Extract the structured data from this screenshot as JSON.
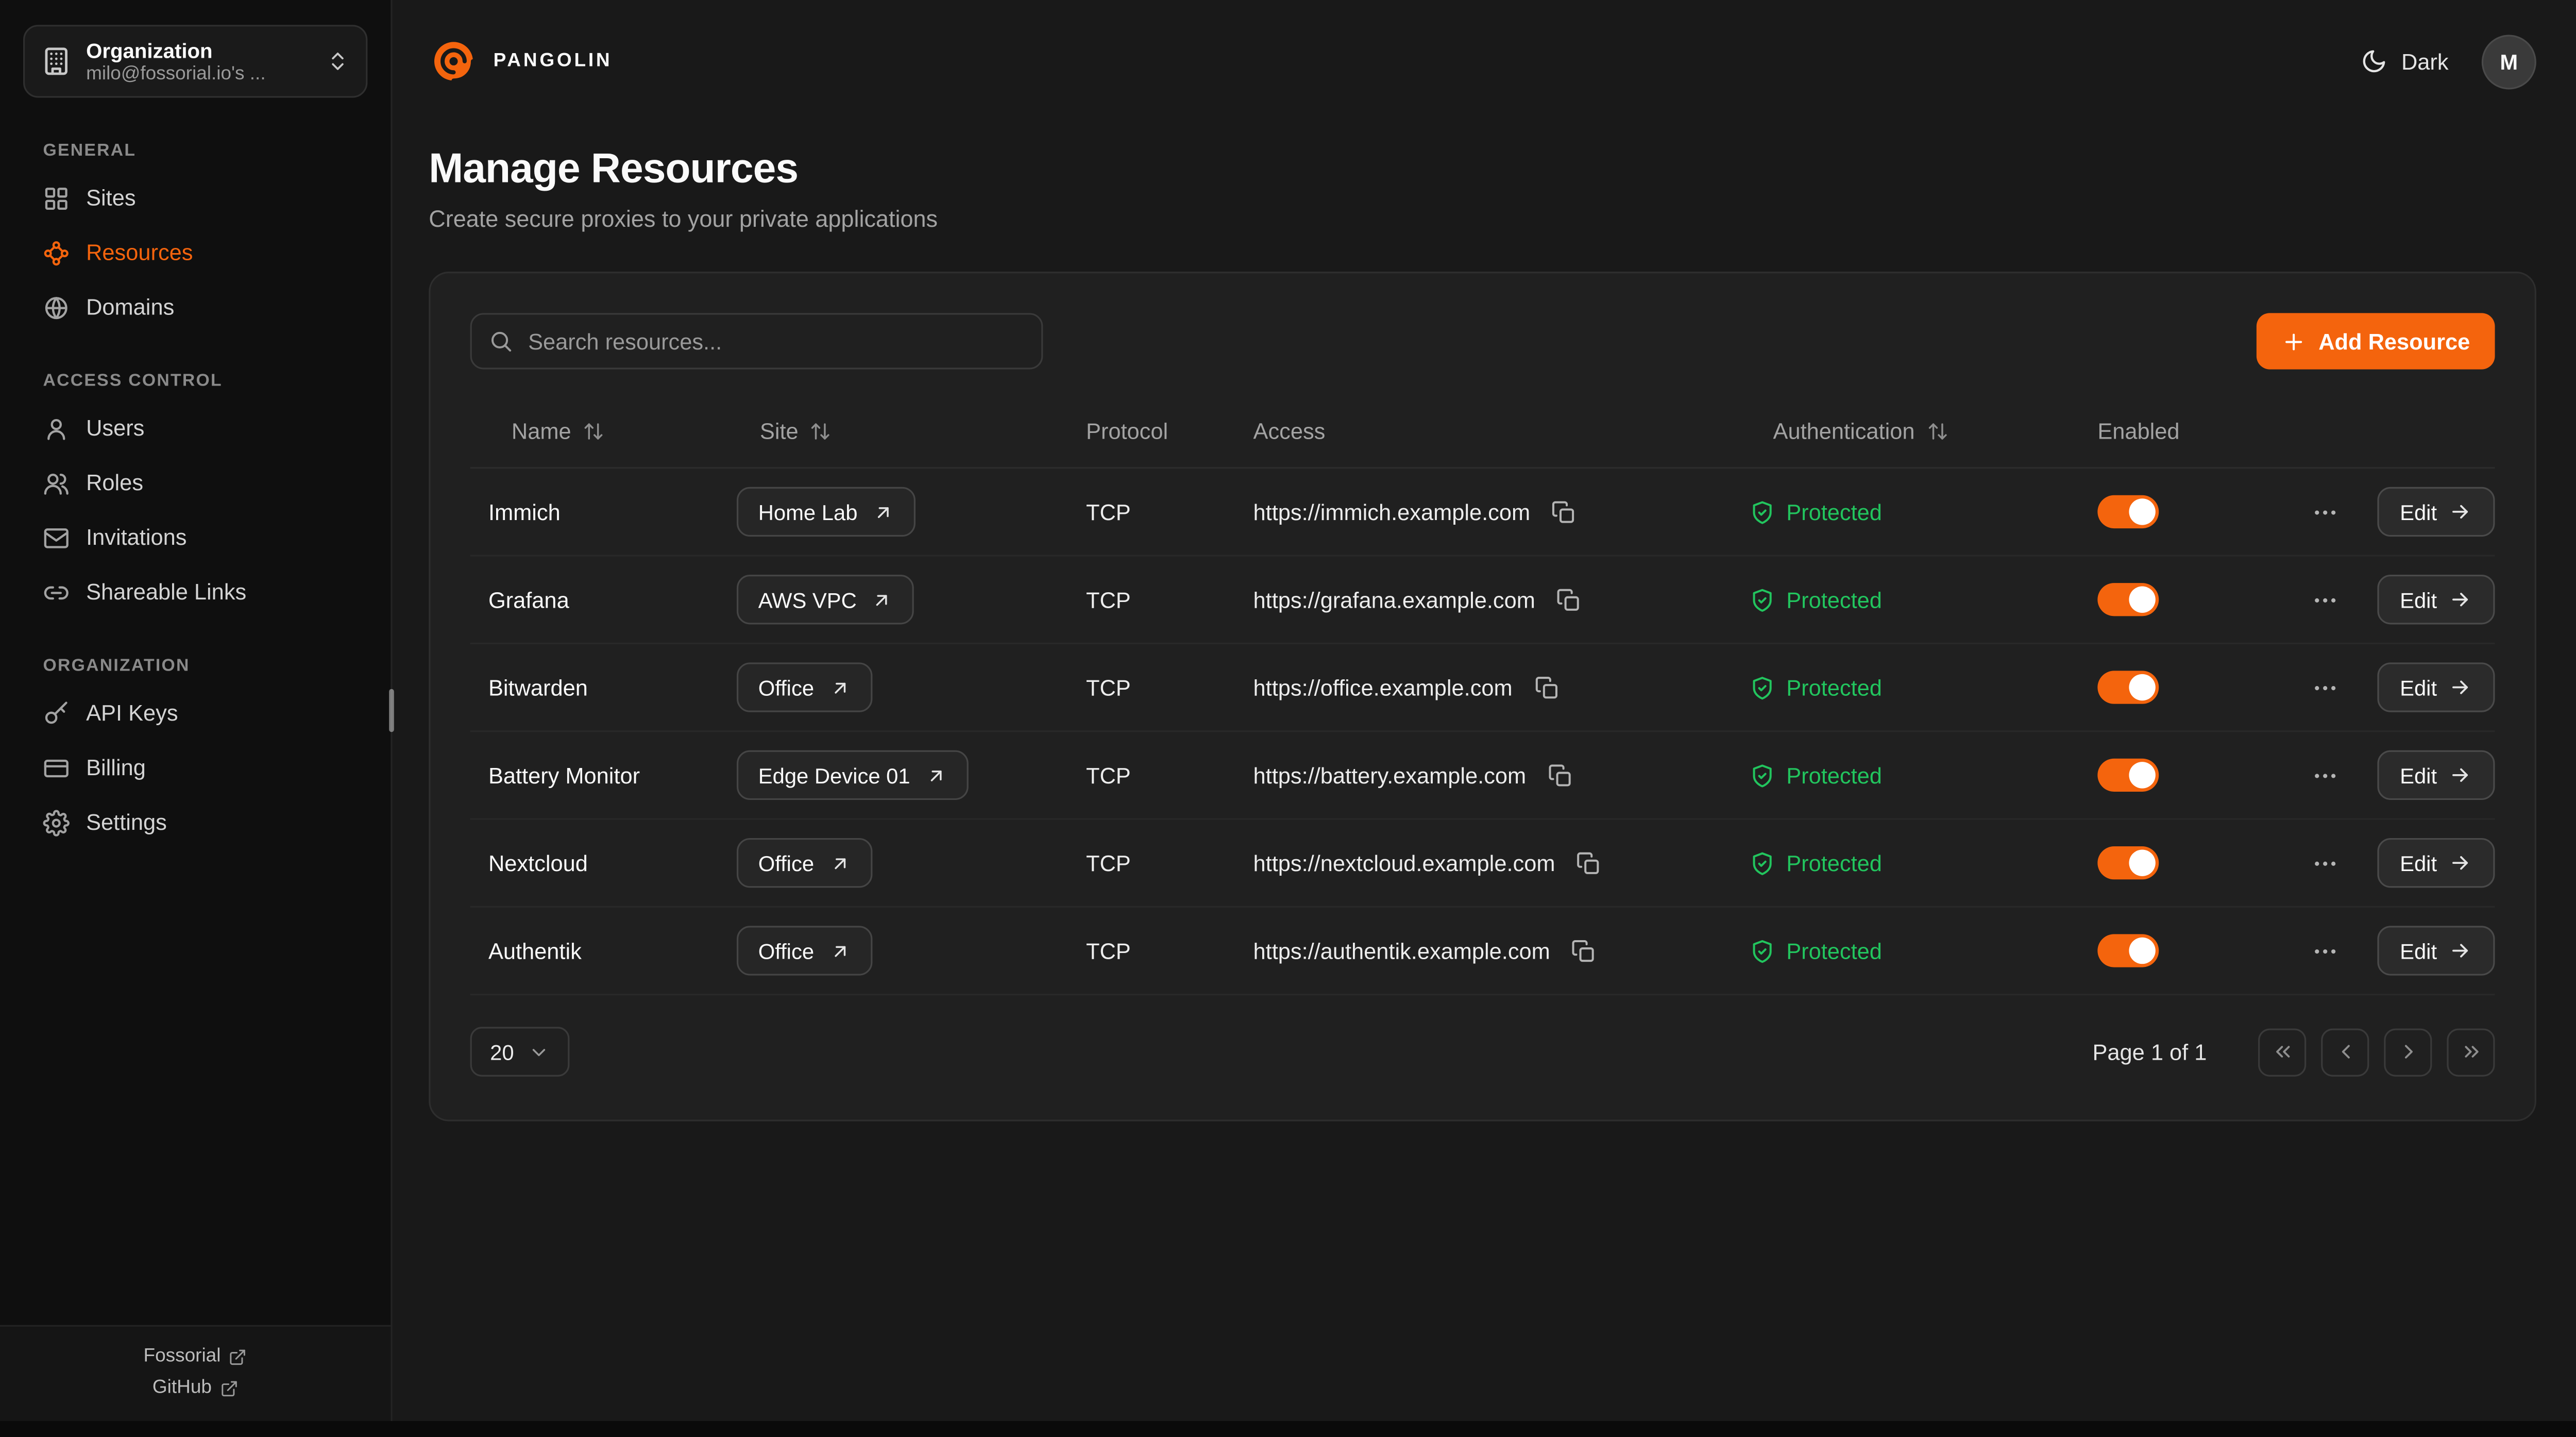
{
  "colors": {
    "accent": "#F4640D",
    "protected_green": "#22C55E"
  },
  "sidebar": {
    "org_selector": {
      "title": "Organization",
      "subtitle": "milo@fossorial.io's ...",
      "icon": "building-icon",
      "chevron_icon": "chevron-up-down-icon"
    },
    "sections": [
      {
        "label": "GENERAL",
        "items": [
          {
            "label": "Sites",
            "icon": "sites-icon",
            "active": false
          },
          {
            "label": "Resources",
            "icon": "resources-icon",
            "active": true
          },
          {
            "label": "Domains",
            "icon": "globe-icon",
            "active": false
          }
        ]
      },
      {
        "label": "ACCESS CONTROL",
        "items": [
          {
            "label": "Users",
            "icon": "user-icon",
            "active": false
          },
          {
            "label": "Roles",
            "icon": "users-icon",
            "active": false
          },
          {
            "label": "Invitations",
            "icon": "mail-icon",
            "active": false
          },
          {
            "label": "Shareable Links",
            "icon": "link-icon",
            "active": false
          }
        ]
      },
      {
        "label": "ORGANIZATION",
        "items": [
          {
            "label": "API Keys",
            "icon": "key-icon",
            "active": false
          },
          {
            "label": "Billing",
            "icon": "credit-card-icon",
            "active": false
          },
          {
            "label": "Settings",
            "icon": "gear-icon",
            "active": false
          }
        ]
      }
    ],
    "footer_links": [
      {
        "label": "Fossorial",
        "icon": "external-link-icon"
      },
      {
        "label": "GitHub",
        "icon": "external-link-icon"
      }
    ]
  },
  "header": {
    "brand": "PANGOLIN",
    "theme_label": "Dark",
    "theme_icon": "moon-icon",
    "avatar_initial": "M"
  },
  "page": {
    "title": "Manage Resources",
    "subtitle": "Create secure proxies to your private applications"
  },
  "toolbar": {
    "search_placeholder": "Search resources...",
    "add_label": "Add Resource"
  },
  "table": {
    "columns": [
      {
        "label": "Name",
        "sortable": true
      },
      {
        "label": "Site",
        "sortable": true
      },
      {
        "label": "Protocol",
        "sortable": false
      },
      {
        "label": "Access",
        "sortable": false
      },
      {
        "label": "Authentication",
        "sortable": true
      },
      {
        "label": "Enabled",
        "sortable": false
      }
    ],
    "edit_label": "Edit",
    "rows": [
      {
        "name": "Immich",
        "site": "Home Lab",
        "protocol": "TCP",
        "access": "https://immich.example.com",
        "auth": "Protected",
        "enabled": true
      },
      {
        "name": "Grafana",
        "site": "AWS VPC",
        "protocol": "TCP",
        "access": "https://grafana.example.com",
        "auth": "Protected",
        "enabled": true
      },
      {
        "name": "Bitwarden",
        "site": "Office",
        "protocol": "TCP",
        "access": "https://office.example.com",
        "auth": "Protected",
        "enabled": true
      },
      {
        "name": "Battery Monitor",
        "site": "Edge Device 01",
        "protocol": "TCP",
        "access": "https://battery.example.com",
        "auth": "Protected",
        "enabled": true
      },
      {
        "name": "Nextcloud",
        "site": "Office",
        "protocol": "TCP",
        "access": "https://nextcloud.example.com",
        "auth": "Protected",
        "enabled": true
      },
      {
        "name": "Authentik",
        "site": "Office",
        "protocol": "TCP",
        "access": "https://authentik.example.com",
        "auth": "Protected",
        "enabled": true
      }
    ]
  },
  "pagination": {
    "page_size": "20",
    "page_info": "Page 1 of 1"
  }
}
